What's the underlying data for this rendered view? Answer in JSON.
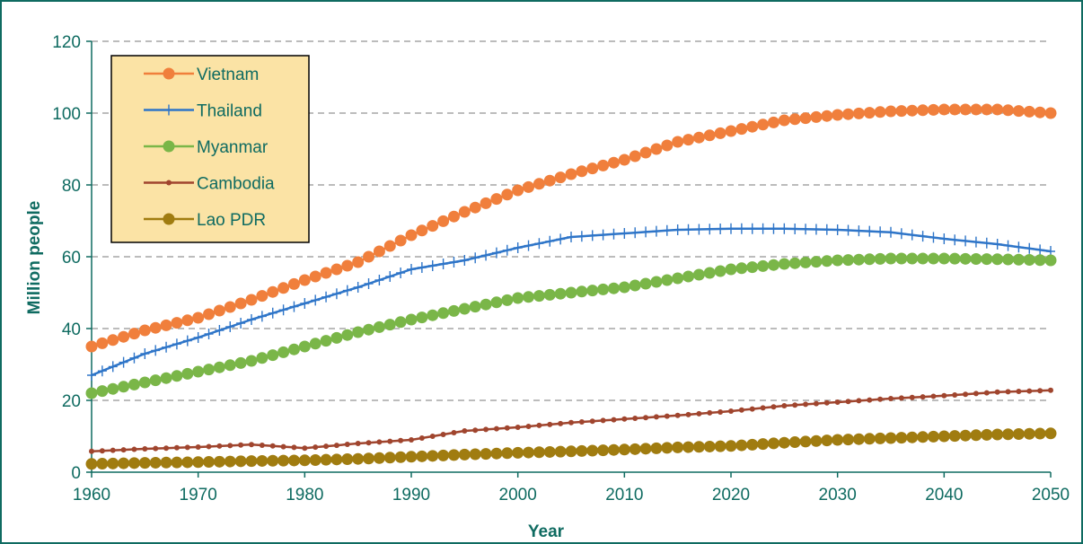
{
  "chart_data": {
    "type": "line",
    "title": "",
    "xlabel": "Year",
    "ylabel": "Million people",
    "xlim": [
      1960,
      2050
    ],
    "ylim": [
      0,
      120
    ],
    "x_ticks": [
      "1960",
      "1970",
      "1980",
      "1990",
      "2000",
      "2010",
      "2020",
      "2030",
      "2040",
      "2050"
    ],
    "y_ticks": [
      "0",
      "20",
      "40",
      "60",
      "80",
      "100",
      "120"
    ],
    "grid": "horizontal dashed",
    "legend_position": "top-left",
    "x": [
      1960,
      1965,
      1970,
      1975,
      1980,
      1985,
      1990,
      1995,
      2000,
      2005,
      2010,
      2015,
      2020,
      2025,
      2030,
      2035,
      2040,
      2045,
      2050
    ],
    "series": [
      {
        "name": "Vietnam",
        "color": "#f07f3c",
        "marker": "circle",
        "values": [
          35,
          39.5,
          43,
          48,
          53.5,
          58.5,
          66,
          72.5,
          78.5,
          83,
          87,
          92,
          95,
          98,
          99.5,
          100.5,
          101,
          101,
          100
        ]
      },
      {
        "name": "Thailand",
        "color": "#2e75c8",
        "marker": "plus",
        "values": [
          27,
          33,
          37.5,
          42.5,
          47,
          51.5,
          56.5,
          59,
          62.5,
          65.5,
          66.5,
          67.5,
          67.8,
          67.8,
          67.5,
          66.8,
          65,
          63.5,
          61.5
        ]
      },
      {
        "name": "Myanmar",
        "color": "#7ab648",
        "marker": "circle",
        "values": [
          22,
          25,
          28,
          31,
          35,
          39,
          42.5,
          45.5,
          48.5,
          50,
          51.5,
          54,
          56.5,
          58,
          59,
          59.5,
          59.5,
          59.3,
          59
        ]
      },
      {
        "name": "Cambodia",
        "color": "#a0452e",
        "marker": "dot",
        "values": [
          5.8,
          6.5,
          7,
          7.7,
          6.7,
          8,
          9,
          11.5,
          12.5,
          13.8,
          14.8,
          15.8,
          17,
          18.5,
          19.5,
          20.5,
          21.3,
          22.3,
          22.8
        ]
      },
      {
        "name": "Lao PDR",
        "color": "#a07c10",
        "marker": "circle",
        "values": [
          2.3,
          2.6,
          2.8,
          3.1,
          3.3,
          3.7,
          4.3,
          4.9,
          5.4,
          5.8,
          6.3,
          6.9,
          7.3,
          8.2,
          9,
          9.5,
          10,
          10.5,
          10.8
        ]
      }
    ]
  }
}
